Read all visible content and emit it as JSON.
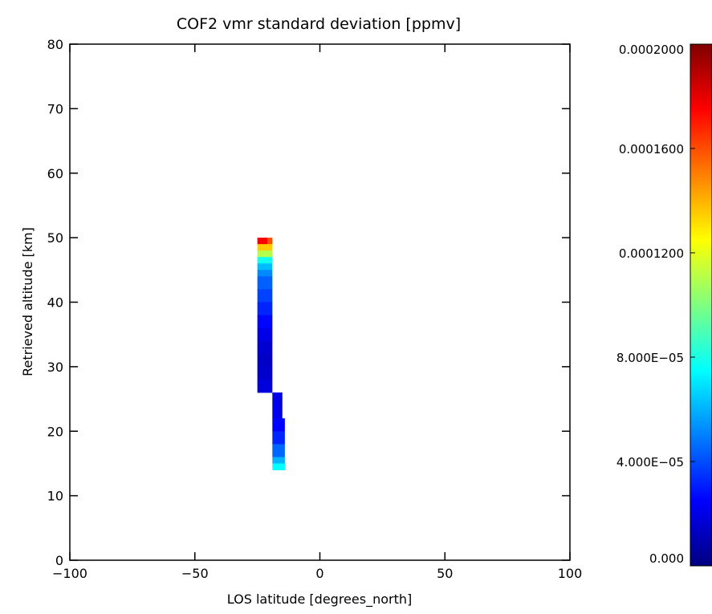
{
  "chart_data": {
    "type": "heatmap",
    "title": "COF2 vmr standard deviation [ppmv]",
    "xlabel": "LOS latitude [degrees_north]",
    "ylabel": "Retrieved altitude [km]",
    "xlim": [
      -100,
      100
    ],
    "ylim": [
      0,
      80
    ],
    "x_ticks": [
      -100,
      -50,
      0,
      50,
      100
    ],
    "x_tick_labels": [
      "−100",
      "−50",
      "0",
      "50",
      "100"
    ],
    "y_ticks": [
      0,
      10,
      20,
      30,
      40,
      50,
      60,
      70,
      80
    ],
    "y_tick_labels": [
      "0",
      "10",
      "20",
      "30",
      "40",
      "50",
      "60",
      "70",
      "80"
    ],
    "grid": false,
    "colormap": "jet",
    "colorbar": {
      "range": [
        0,
        0.0002
      ],
      "ticks": [
        0,
        4e-05,
        8e-05,
        0.00012,
        0.00016,
        0.0002
      ],
      "tick_labels": [
        "0.000",
        "4.000E−05",
        "8.000E−05",
        "0.0001200",
        "0.0001600",
        "0.0002000"
      ]
    },
    "cells": [
      {
        "x": [
          -25,
          -21
        ],
        "y": [
          49,
          50
        ],
        "value": 0.000175
      },
      {
        "x": [
          -21,
          -19
        ],
        "y": [
          49,
          50
        ],
        "value": 0.00016
      },
      {
        "x": [
          -25,
          -19
        ],
        "y": [
          48,
          49
        ],
        "value": 0.000135
      },
      {
        "x": [
          -25,
          -19
        ],
        "y": [
          47,
          48
        ],
        "value": 0.00011
      },
      {
        "x": [
          -25,
          -19
        ],
        "y": [
          46,
          47
        ],
        "value": 7.8e-05
      },
      {
        "x": [
          -25,
          -19
        ],
        "y": [
          45,
          46
        ],
        "value": 6.2e-05
      },
      {
        "x": [
          -25,
          -19
        ],
        "y": [
          44,
          45
        ],
        "value": 5.2e-05
      },
      {
        "x": [
          -25,
          -19
        ],
        "y": [
          42,
          44
        ],
        "value": 4.4e-05
      },
      {
        "x": [
          -25,
          -19
        ],
        "y": [
          40,
          42
        ],
        "value": 3.8e-05
      },
      {
        "x": [
          -25,
          -19
        ],
        "y": [
          38,
          40
        ],
        "value": 3.2e-05
      },
      {
        "x": [
          -25,
          -19
        ],
        "y": [
          36,
          38
        ],
        "value": 2.6e-05
      },
      {
        "x": [
          -25,
          -19
        ],
        "y": [
          34,
          36
        ],
        "value": 2e-05
      },
      {
        "x": [
          -25,
          -19
        ],
        "y": [
          32,
          34
        ],
        "value": 1.6e-05
      },
      {
        "x": [
          -25,
          -19
        ],
        "y": [
          30,
          32
        ],
        "value": 1.4e-05
      },
      {
        "x": [
          -25,
          -19
        ],
        "y": [
          28,
          30
        ],
        "value": 1.5e-05
      },
      {
        "x": [
          -25,
          -19
        ],
        "y": [
          26,
          28
        ],
        "value": 1.8e-05
      },
      {
        "x": [
          -19,
          -15
        ],
        "y": [
          24,
          26
        ],
        "value": 2e-05
      },
      {
        "x": [
          -19,
          -15
        ],
        "y": [
          22,
          24
        ],
        "value": 2.1e-05
      },
      {
        "x": [
          -19,
          -14
        ],
        "y": [
          20,
          22
        ],
        "value": 2.5e-05
      },
      {
        "x": [
          -19,
          -14
        ],
        "y": [
          18,
          20
        ],
        "value": 3.2e-05
      },
      {
        "x": [
          -19,
          -14
        ],
        "y": [
          16,
          18
        ],
        "value": 4.5e-05
      },
      {
        "x": [
          -19,
          -14
        ],
        "y": [
          15,
          16
        ],
        "value": 6e-05
      },
      {
        "x": [
          -19,
          -14
        ],
        "y": [
          14,
          15
        ],
        "value": 7.5e-05
      }
    ]
  }
}
